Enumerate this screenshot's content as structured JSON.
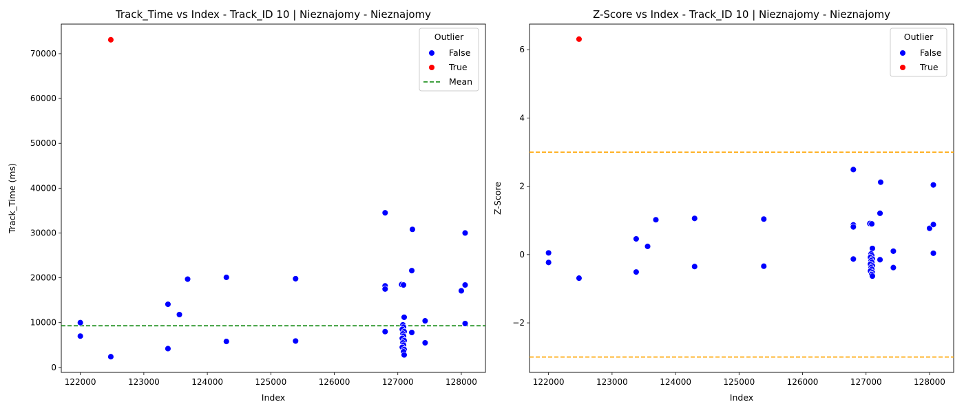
{
  "chart_data": [
    {
      "type": "scatter",
      "title": "Track_Time vs Index - Track_ID 10 | Nieznajomy - Nieznajomy",
      "xlabel": "Index",
      "ylabel": "Track_Time (ms)",
      "xlim": [
        121700,
        128380
      ],
      "ylim": [
        -1100,
        76600
      ],
      "xticks": [
        122000,
        123000,
        124000,
        125000,
        126000,
        127000,
        128000
      ],
      "yticks": [
        0,
        10000,
        20000,
        30000,
        40000,
        50000,
        60000,
        70000
      ],
      "grid": false,
      "legend": {
        "title": "Outlier",
        "placement": "top-right",
        "entries": [
          {
            "label": "False",
            "kind": "dot",
            "color": "#0000ff"
          },
          {
            "label": "True",
            "kind": "dot",
            "color": "#ff0000"
          },
          {
            "label": "Mean",
            "kind": "dashed-line",
            "color": "#008000"
          }
        ]
      },
      "hlines": [
        {
          "y": 9300,
          "color": "#008000",
          "style": "dashed"
        }
      ],
      "series": [
        {
          "name": "False",
          "color": "#0000ff",
          "points": [
            [
              122000,
              10000
            ],
            [
              122000,
              7000
            ],
            [
              122480,
              2400
            ],
            [
              123380,
              14100
            ],
            [
              123380,
              4200
            ],
            [
              123560,
              11800
            ],
            [
              123690,
              19700
            ],
            [
              124300,
              20100
            ],
            [
              124300,
              5800
            ],
            [
              125390,
              19800
            ],
            [
              125390,
              5900
            ],
            [
              126800,
              34500
            ],
            [
              126800,
              18200
            ],
            [
              126800,
              17500
            ],
            [
              126800,
              8000
            ],
            [
              127060,
              18500
            ],
            [
              127090,
              18400
            ],
            [
              127100,
              11200
            ],
            [
              127080,
              9500
            ],
            [
              127090,
              9000
            ],
            [
              127070,
              8500
            ],
            [
              127100,
              8000
            ],
            [
              127080,
              7500
            ],
            [
              127090,
              7000
            ],
            [
              127070,
              6500
            ],
            [
              127100,
              6000
            ],
            [
              127080,
              5500
            ],
            [
              127090,
              5000
            ],
            [
              127070,
              4500
            ],
            [
              127100,
              4000
            ],
            [
              127090,
              3500
            ],
            [
              127100,
              2800
            ],
            [
              127230,
              30800
            ],
            [
              127220,
              21600
            ],
            [
              127220,
              7800
            ],
            [
              127430,
              10400
            ],
            [
              127430,
              5500
            ],
            [
              128000,
              17100
            ],
            [
              128060,
              30000
            ],
            [
              128060,
              18400
            ],
            [
              128060,
              9800
            ]
          ]
        },
        {
          "name": "True",
          "color": "#ff0000",
          "points": [
            [
              122480,
              73100
            ]
          ]
        }
      ]
    },
    {
      "type": "scatter",
      "title": "Z-Score vs Index - Track_ID 10 | Nieznajomy - Nieznajomy",
      "xlabel": "Index",
      "ylabel": "Z-Score",
      "xlim": [
        121700,
        128380
      ],
      "ylim": [
        -3.45,
        6.75
      ],
      "xticks": [
        122000,
        123000,
        124000,
        125000,
        126000,
        127000,
        128000
      ],
      "yticks": [
        -2,
        0,
        2,
        4,
        6
      ],
      "grid": false,
      "legend": {
        "title": "Outlier",
        "placement": "top-right",
        "entries": [
          {
            "label": "False",
            "kind": "dot",
            "color": "#0000ff"
          },
          {
            "label": "True",
            "kind": "dot",
            "color": "#ff0000"
          }
        ]
      },
      "hlines": [
        {
          "y": 3,
          "color": "#ffa500",
          "style": "dashed"
        },
        {
          "y": -3,
          "color": "#ffa500",
          "style": "dashed"
        }
      ],
      "series": [
        {
          "name": "False",
          "color": "#0000ff",
          "points": [
            [
              122000,
              0.05
            ],
            [
              122000,
              -0.23
            ],
            [
              122480,
              -0.69
            ],
            [
              123380,
              0.46
            ],
            [
              123380,
              -0.51
            ],
            [
              123560,
              0.24
            ],
            [
              123690,
              1.02
            ],
            [
              124300,
              1.06
            ],
            [
              124300,
              -0.35
            ],
            [
              125390,
              1.04
            ],
            [
              125390,
              -0.34
            ],
            [
              126800,
              2.49
            ],
            [
              126800,
              0.87
            ],
            [
              126800,
              0.81
            ],
            [
              126800,
              -0.13
            ],
            [
              127060,
              0.91
            ],
            [
              127090,
              0.9
            ],
            [
              127100,
              0.18
            ],
            [
              127080,
              0.02
            ],
            [
              127090,
              -0.03
            ],
            [
              127070,
              -0.08
            ],
            [
              127100,
              -0.13
            ],
            [
              127080,
              -0.18
            ],
            [
              127090,
              -0.23
            ],
            [
              127070,
              -0.28
            ],
            [
              127100,
              -0.33
            ],
            [
              127080,
              -0.38
            ],
            [
              127090,
              -0.43
            ],
            [
              127070,
              -0.48
            ],
            [
              127100,
              -0.53
            ],
            [
              127090,
              -0.58
            ],
            [
              127100,
              -0.63
            ],
            [
              127230,
              2.12
            ],
            [
              127220,
              1.21
            ],
            [
              127220,
              -0.15
            ],
            [
              127430,
              0.1
            ],
            [
              127430,
              -0.38
            ],
            [
              128000,
              0.77
            ],
            [
              128060,
              2.04
            ],
            [
              128060,
              0.88
            ],
            [
              128060,
              0.04
            ]
          ]
        },
        {
          "name": "True",
          "color": "#ff0000",
          "points": [
            [
              122480,
              6.31
            ]
          ]
        }
      ]
    }
  ]
}
